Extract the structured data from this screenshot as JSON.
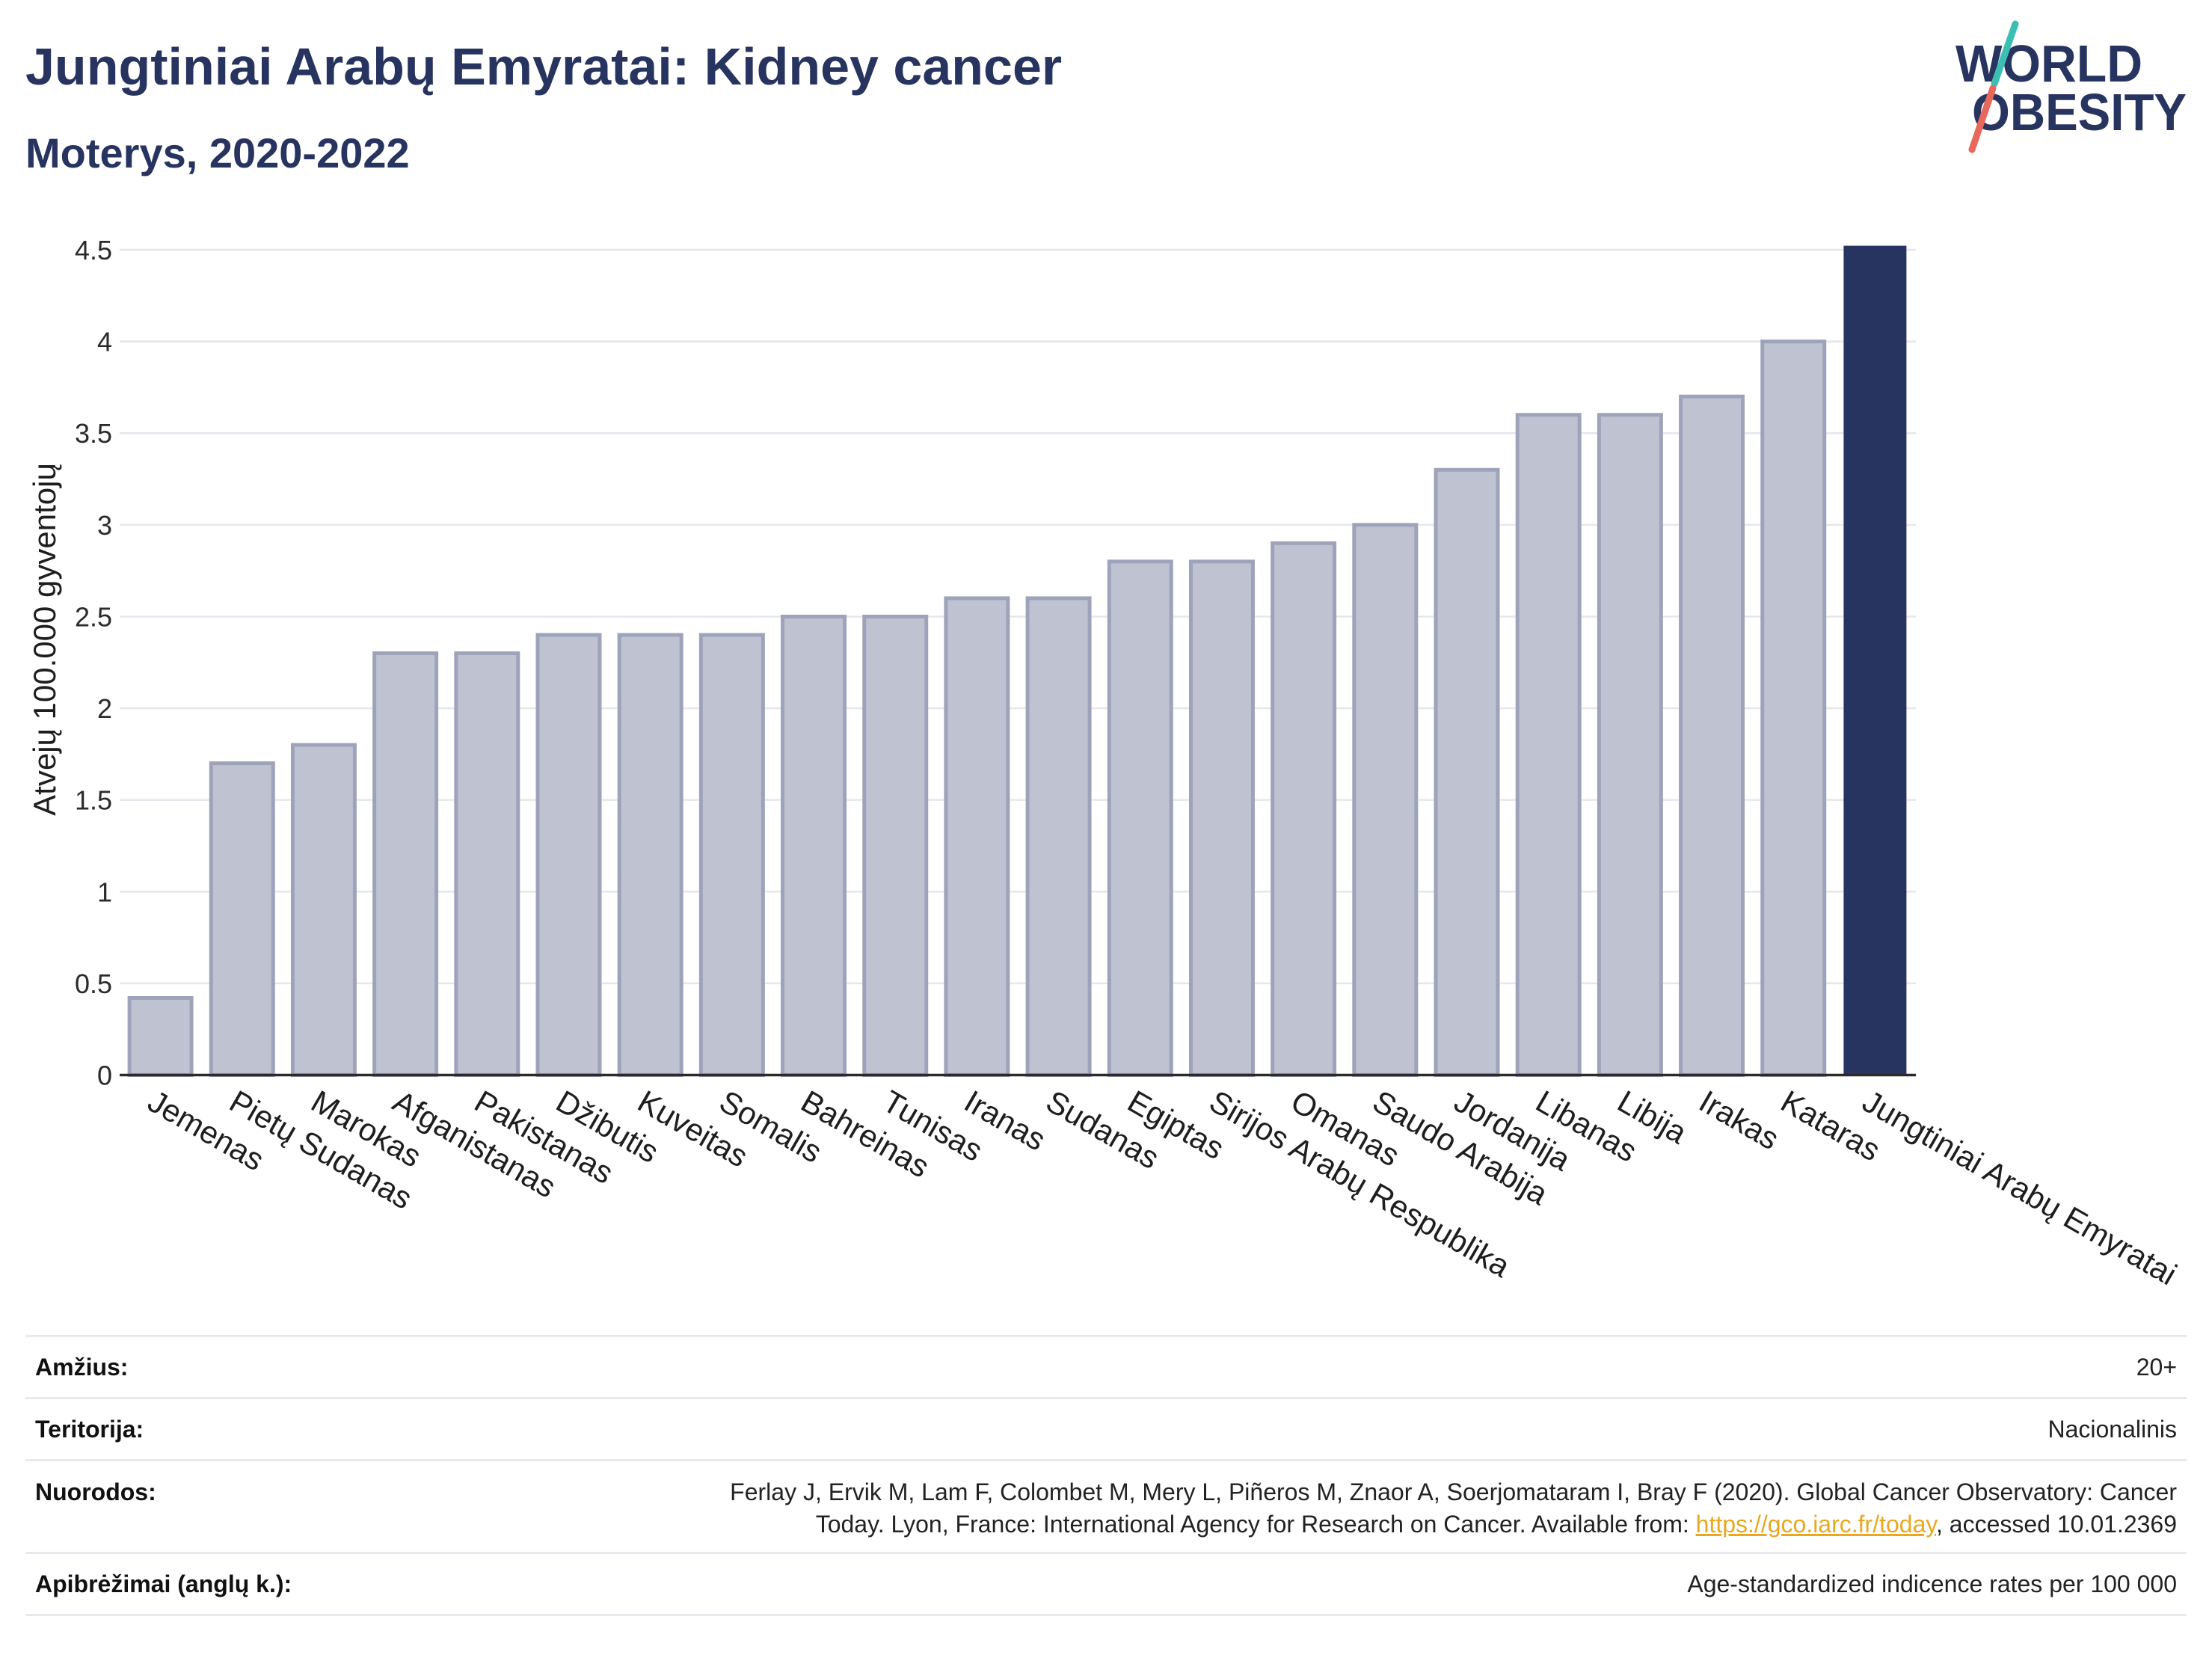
{
  "logo": {
    "line1": "WORLD",
    "line2": "OBESITY",
    "colors": {
      "text": "#283460",
      "teal": "#3cbeb3",
      "coral": "#e8685b"
    }
  },
  "chart_data": {
    "type": "bar",
    "title": "Jungtiniai Arabų Emyratai: Kidney cancer",
    "subtitle": "Moterys, 2020-2022",
    "ylabel": "Atvejų 100.000 gyventojų",
    "categories": [
      "Jemenas",
      "Pietų Sudanas",
      "Marokas",
      "Afganistanas",
      "Pakistanas",
      "Džibutis",
      "Kuveitas",
      "Somalis",
      "Bahreinas",
      "Tunisas",
      "Iranas",
      "Sudanas",
      "Egiptas",
      "Sirijos Arabų Respublika",
      "Omanas",
      "Saudo Arabija",
      "Jordanija",
      "Libanas",
      "Libija",
      "Irakas",
      "Kataras",
      "Jungtiniai Arabų Emyratai"
    ],
    "values": [
      0.42,
      1.7,
      1.8,
      2.3,
      2.3,
      2.4,
      2.4,
      2.4,
      2.5,
      2.5,
      2.6,
      2.6,
      2.8,
      2.8,
      2.9,
      3.0,
      3.3,
      3.6,
      3.6,
      3.7,
      4.0,
      4.52
    ],
    "highlight_index": 21,
    "ylim": [
      0,
      4.5
    ],
    "yticks": [
      0,
      0.5,
      1,
      1.5,
      2,
      2.5,
      3,
      3.5,
      4,
      4.5
    ],
    "ytick_labels": [
      "0",
      "0.5",
      "1",
      "1.5",
      "2",
      "2.5",
      "3",
      "3.5",
      "4",
      "4.5"
    ],
    "grid": true,
    "colors": {
      "bar": "#bfc2d1",
      "bar_border": "#9ea3ba",
      "highlight": "#283460",
      "grid": "#e6e7ee",
      "axis": "#2a2a2a"
    }
  },
  "footer": {
    "age": {
      "label": "Amžius:",
      "value": "20+"
    },
    "territory": {
      "label": "Teritorija:",
      "value": "Nacionalinis"
    },
    "references": {
      "label": "Nuorodos:",
      "line1": "Ferlay J, Ervik M, Lam F, Colombet M, Mery L, Piñeros M, Znaor A, Soerjomataram I, Bray F (2020). Global Cancer Observatory: Cancer",
      "line2_before_link": "Today. Lyon, France: International Agency for Research on Cancer. Available from: ",
      "link": "https://gco.iarc.fr/today",
      "line2_after_link": ", accessed 10.01.2369"
    },
    "definitions": {
      "label": "Apibrėžimai (anglų k.):",
      "value": "Age-standardized indicence rates per 100 000"
    },
    "link_color": "#e9a81f"
  }
}
